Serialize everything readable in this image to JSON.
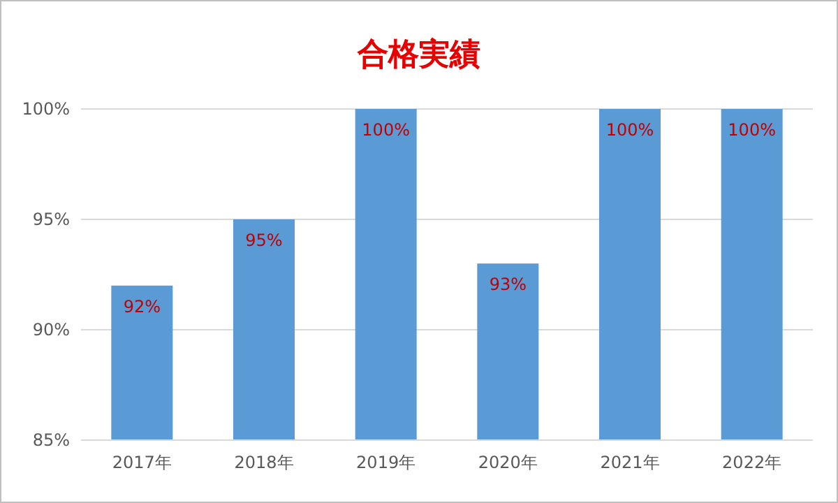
{
  "chart_data": {
    "type": "bar",
    "title": "合格実績",
    "categories": [
      "2017年",
      "2018年",
      "2019年",
      "2020年",
      "2021年",
      "2022年"
    ],
    "values": [
      92,
      95,
      100,
      93,
      100,
      100
    ],
    "value_labels": [
      "92%",
      "95%",
      "100%",
      "93%",
      "100%",
      "100%"
    ],
    "color": "#5b9bd5",
    "ylim": [
      85,
      100
    ],
    "yticks": [
      {
        "value": 85,
        "label": "85%"
      },
      {
        "value": 90,
        "label": "90%"
      },
      {
        "value": 95,
        "label": "95%"
      },
      {
        "value": 100,
        "label": "100%"
      }
    ],
    "grid": "y"
  }
}
